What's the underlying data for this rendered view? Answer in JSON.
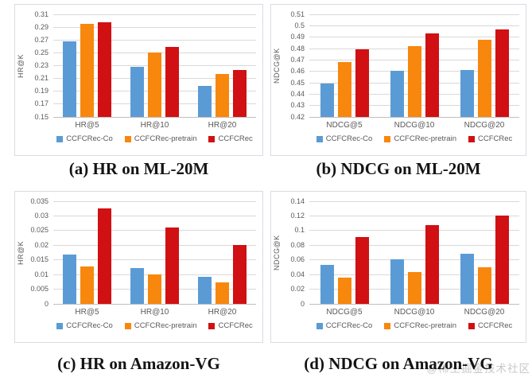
{
  "page": {
    "watermark": "@稀土掘金技术社区"
  },
  "colors": {
    "series": [
      "#5B9BD5",
      "#F8870E",
      "#D01013"
    ],
    "gridline": "#D9D9D9",
    "axis_text": "#595959",
    "panel_border": "#D9DCE3"
  },
  "captions": [
    "(a) HR on ML-20M",
    "(b) NDCG on ML-20M",
    "(c) HR on Amazon-VG",
    "(d) NDCG on Amazon-VG"
  ],
  "chart_data": [
    {
      "id": "hr-ml20m",
      "type": "bar",
      "title": "(a) HR on ML-20M",
      "xlabel": "",
      "ylabel": "HR@K",
      "categories": [
        "HR@5",
        "HR@10",
        "HR@20"
      ],
      "series": [
        {
          "name": "CCFCRec-Co",
          "values": [
            0.268,
            0.228,
            0.198
          ]
        },
        {
          "name": "CCFCRec-pretrain",
          "values": [
            0.295,
            0.251,
            0.217
          ]
        },
        {
          "name": "CCFCRec",
          "values": [
            0.297,
            0.259,
            0.223
          ]
        }
      ],
      "ylim": [
        0.15,
        0.31
      ],
      "ytick_labels": [
        "0.15",
        "0.17",
        "0.19",
        "0.21",
        "0.23",
        "0.25",
        "0.27",
        "0.29",
        "0.31"
      ],
      "grid": true,
      "legend_position": "bottom"
    },
    {
      "id": "ndcg-ml20m",
      "type": "bar",
      "title": "(b) NDCG on ML-20M",
      "xlabel": "",
      "ylabel": "NDCG@K",
      "categories": [
        "NDCG@5",
        "NDCG@10",
        "NDCG@20"
      ],
      "series": [
        {
          "name": "CCFCRec-Co",
          "values": [
            0.4495,
            0.4605,
            0.4615
          ]
        },
        {
          "name": "CCFCRec-pretrain",
          "values": [
            0.468,
            0.482,
            0.4875
          ]
        },
        {
          "name": "CCFCRec",
          "values": [
            0.4795,
            0.493,
            0.4965
          ]
        }
      ],
      "ylim": [
        0.42,
        0.51
      ],
      "ytick_labels": [
        "0.42",
        "0.43",
        "0.44",
        "0.45",
        "0.46",
        "0.47",
        "0.48",
        "0.49",
        "0.5",
        "0.51"
      ],
      "grid": true,
      "legend_position": "bottom"
    },
    {
      "id": "hr-amazon-vg",
      "type": "bar",
      "title": "(c) HR on Amazon-VG",
      "xlabel": "",
      "ylabel": "HR@K",
      "categories": [
        "HR@5",
        "HR@10",
        "HR@20"
      ],
      "series": [
        {
          "name": "CCFCRec-Co",
          "values": [
            0.0168,
            0.0122,
            0.0093
          ]
        },
        {
          "name": "CCFCRec-pretrain",
          "values": [
            0.0128,
            0.01,
            0.0074
          ]
        },
        {
          "name": "CCFCRec",
          "values": [
            0.0325,
            0.026,
            0.0201
          ]
        }
      ],
      "ylim": [
        0,
        0.035
      ],
      "ytick_labels": [
        "0",
        "0.005",
        "0.01",
        "0.015",
        "0.02",
        "0.025",
        "0.03",
        "0.035"
      ],
      "grid": true,
      "legend_position": "bottom"
    },
    {
      "id": "ndcg-amazon-vg",
      "type": "bar",
      "title": "(d) NDCG on Amazon-VG",
      "xlabel": "",
      "ylabel": "NDCG@K",
      "categories": [
        "NDCG@5",
        "NDCG@10",
        "NDCG@20"
      ],
      "series": [
        {
          "name": "CCFCRec-Co",
          "values": [
            0.053,
            0.0605,
            0.068
          ]
        },
        {
          "name": "CCFCRec-pretrain",
          "values": [
            0.036,
            0.043,
            0.05
          ]
        },
        {
          "name": "CCFCRec",
          "values": [
            0.091,
            0.107,
            0.12
          ]
        }
      ],
      "ylim": [
        0,
        0.14
      ],
      "ytick_labels": [
        "0",
        "0.02",
        "0.04",
        "0.06",
        "0.08",
        "0.1",
        "0.12",
        "0.14"
      ],
      "grid": true,
      "legend_position": "bottom"
    }
  ]
}
